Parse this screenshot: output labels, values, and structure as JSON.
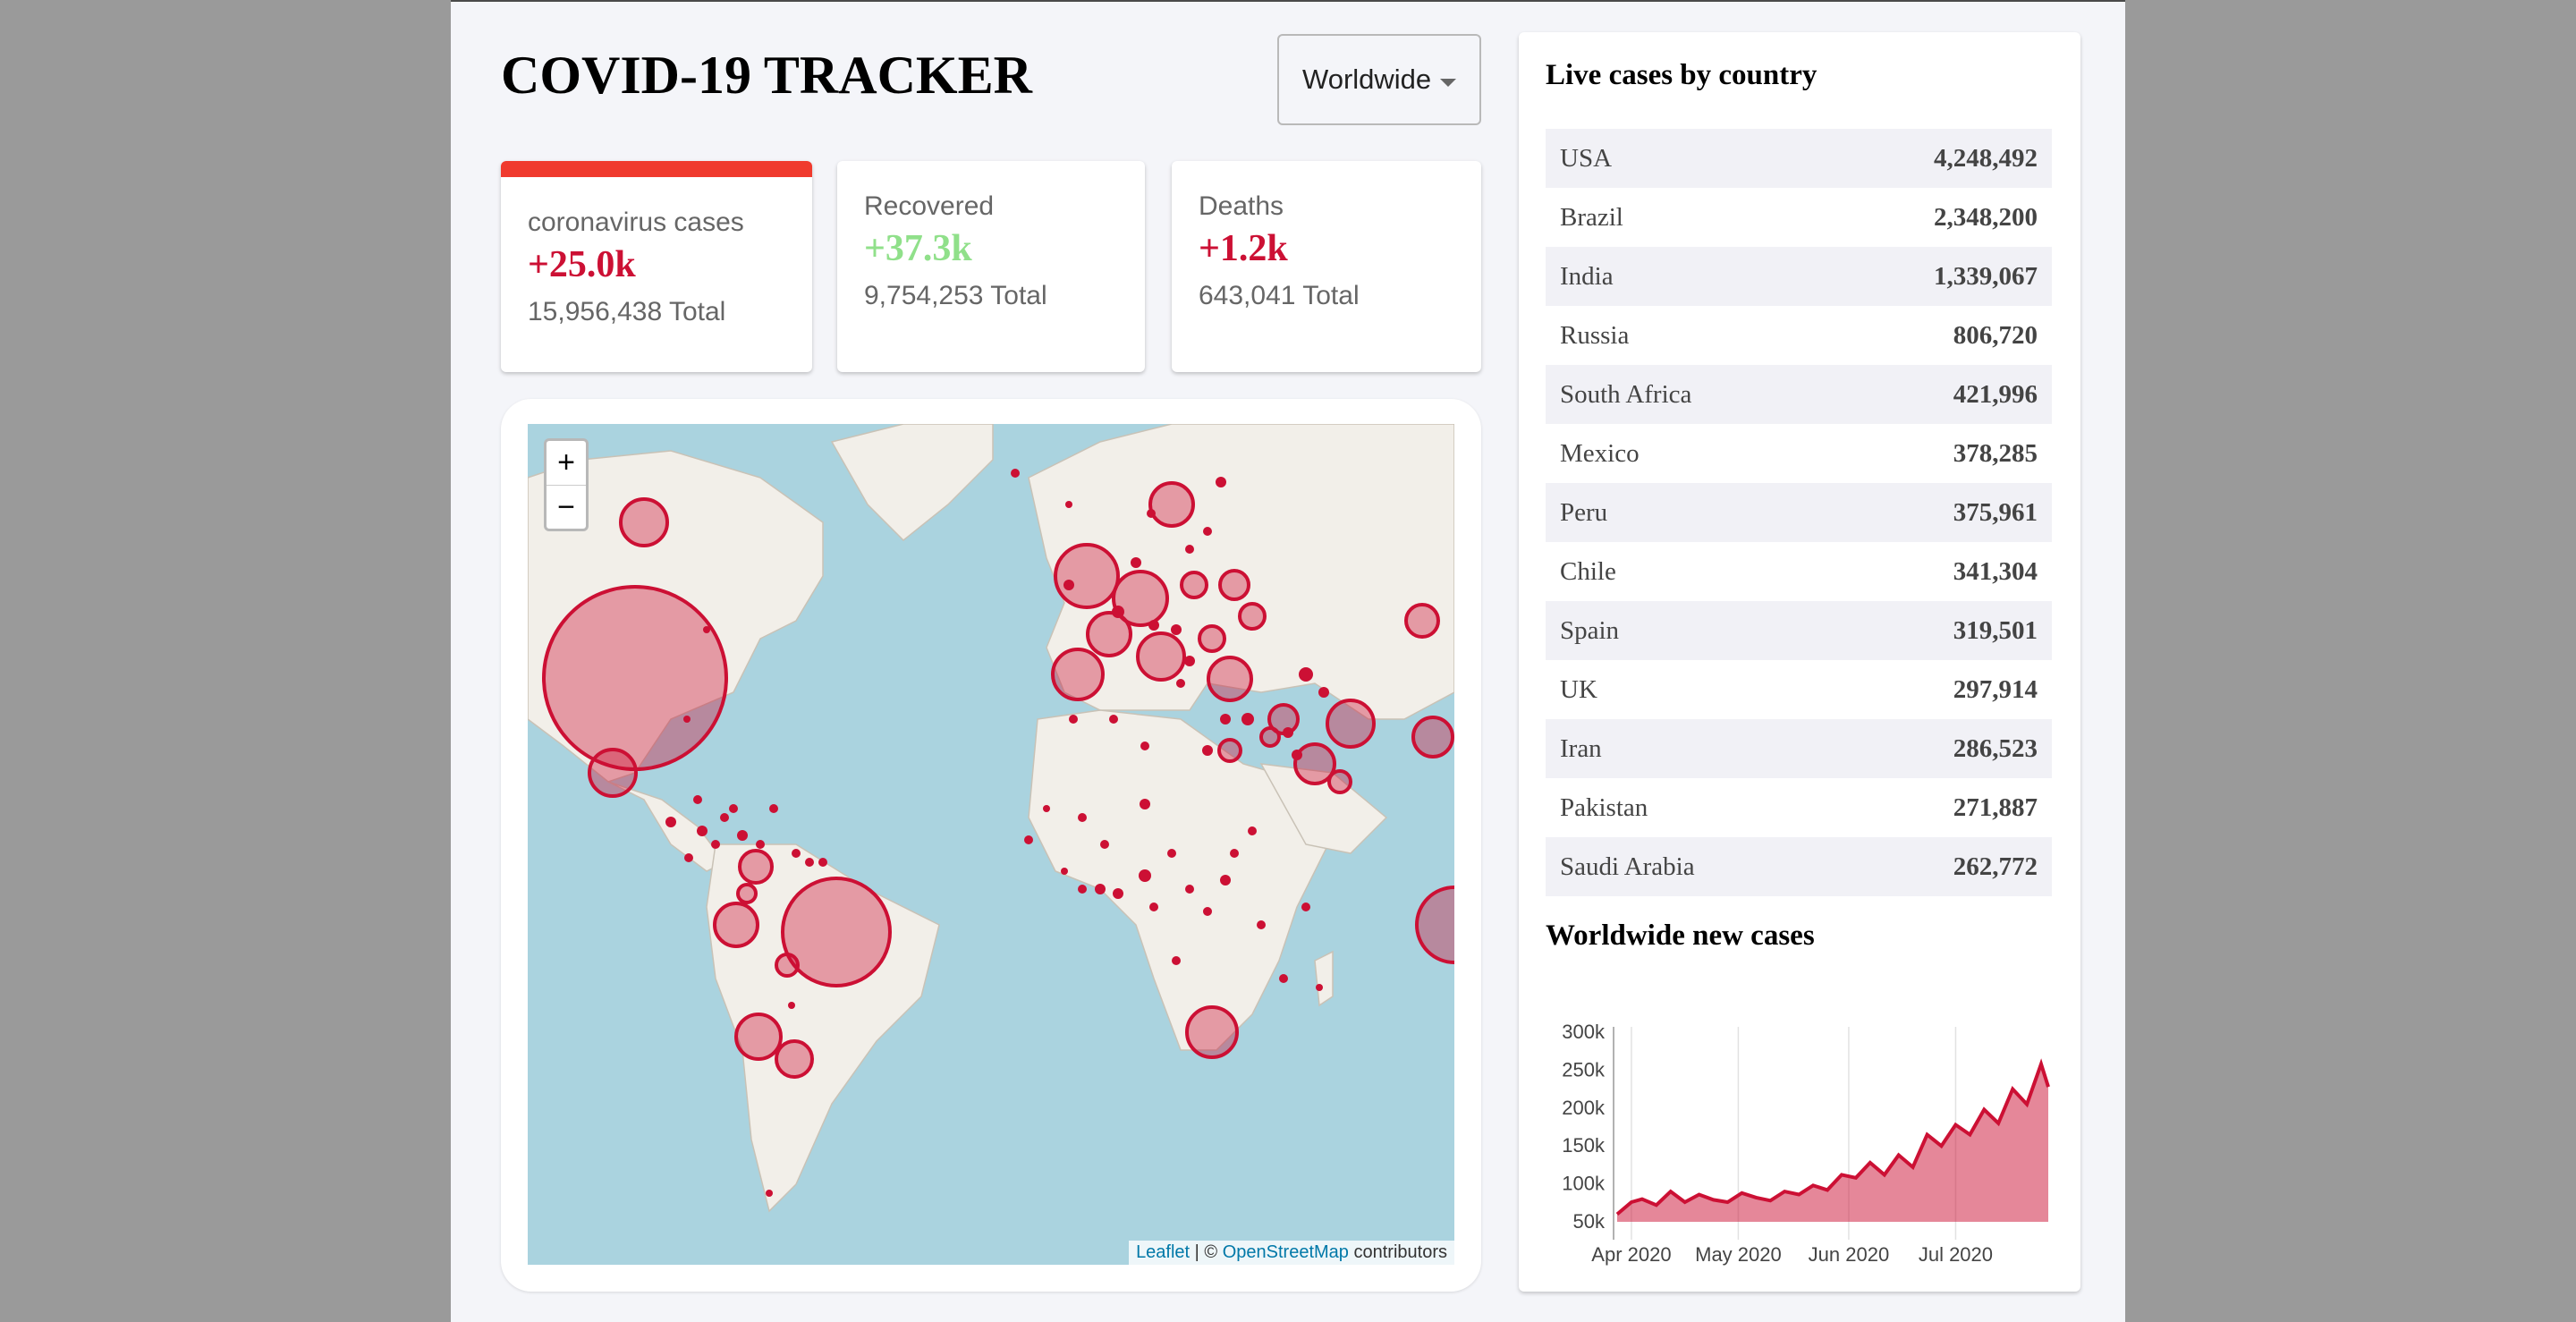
{
  "header": {
    "title": "COVID-19 TRACKER"
  },
  "country_select": {
    "value": "Worldwide"
  },
  "stats": [
    {
      "label": "coronavirus cases",
      "new": "+25.0k",
      "total": "15,956,438 Total",
      "color": "#cc1034"
    },
    {
      "label": "Recovered",
      "new": "+37.3k",
      "total": "9,754,253 Total",
      "color": "#7dd71d"
    },
    {
      "label": "Deaths",
      "new": "+1.2k",
      "total": "643,041 Total",
      "color": "#cc1034"
    }
  ],
  "map": {
    "zoom_in": "+",
    "zoom_out": "−",
    "attribution_leaflet": "Leaflet",
    "attribution_sep": " | © ",
    "attribution_osm": "OpenStreetMap",
    "attribution_rest": " contributors",
    "circle_color": "#cc1034"
  },
  "sidebar": {
    "table_title": "Live cases by country",
    "countries": [
      {
        "name": "USA",
        "cases": "4,248,492"
      },
      {
        "name": "Brazil",
        "cases": "2,348,200"
      },
      {
        "name": "India",
        "cases": "1,339,067"
      },
      {
        "name": "Russia",
        "cases": "806,720"
      },
      {
        "name": "South Africa",
        "cases": "421,996"
      },
      {
        "name": "Mexico",
        "cases": "378,285"
      },
      {
        "name": "Peru",
        "cases": "375,961"
      },
      {
        "name": "Chile",
        "cases": "341,304"
      },
      {
        "name": "Spain",
        "cases": "319,501"
      },
      {
        "name": "UK",
        "cases": "297,914"
      },
      {
        "name": "Iran",
        "cases": "286,523"
      },
      {
        "name": "Pakistan",
        "cases": "271,887"
      },
      {
        "name": "Saudi Arabia",
        "cases": "262,772"
      }
    ],
    "chart_title": "Worldwide new cases"
  },
  "chart_data": {
    "type": "area",
    "title": "Worldwide new cases",
    "x_tick_labels": [
      "Apr 2020",
      "May 2020",
      "Jun 2020",
      "Jul 2020"
    ],
    "y_tick_labels": [
      "50k",
      "100k",
      "150k",
      "200k",
      "250k",
      "300k"
    ],
    "ylim": [
      50000,
      300000
    ],
    "grid": "vertical",
    "color": "#cc1034",
    "x": [
      "2020-03-28",
      "2020-04-01",
      "2020-04-04",
      "2020-04-08",
      "2020-04-12",
      "2020-04-16",
      "2020-04-20",
      "2020-04-24",
      "2020-04-28",
      "2020-05-02",
      "2020-05-06",
      "2020-05-10",
      "2020-05-14",
      "2020-05-18",
      "2020-05-22",
      "2020-05-26",
      "2020-05-30",
      "2020-06-03",
      "2020-06-07",
      "2020-06-11",
      "2020-06-15",
      "2020-06-19",
      "2020-06-23",
      "2020-06-27",
      "2020-07-01",
      "2020-07-05",
      "2020-07-09",
      "2020-07-13",
      "2020-07-17",
      "2020-07-21",
      "2020-07-25",
      "2020-07-27"
    ],
    "values": [
      60000,
      76000,
      80000,
      72000,
      90000,
      76000,
      86000,
      79000,
      76000,
      88000,
      82000,
      78000,
      90000,
      86000,
      98000,
      92000,
      112000,
      108000,
      128000,
      112000,
      138000,
      122000,
      165000,
      150000,
      178000,
      165000,
      198000,
      180000,
      225000,
      205000,
      258000,
      228000
    ]
  }
}
